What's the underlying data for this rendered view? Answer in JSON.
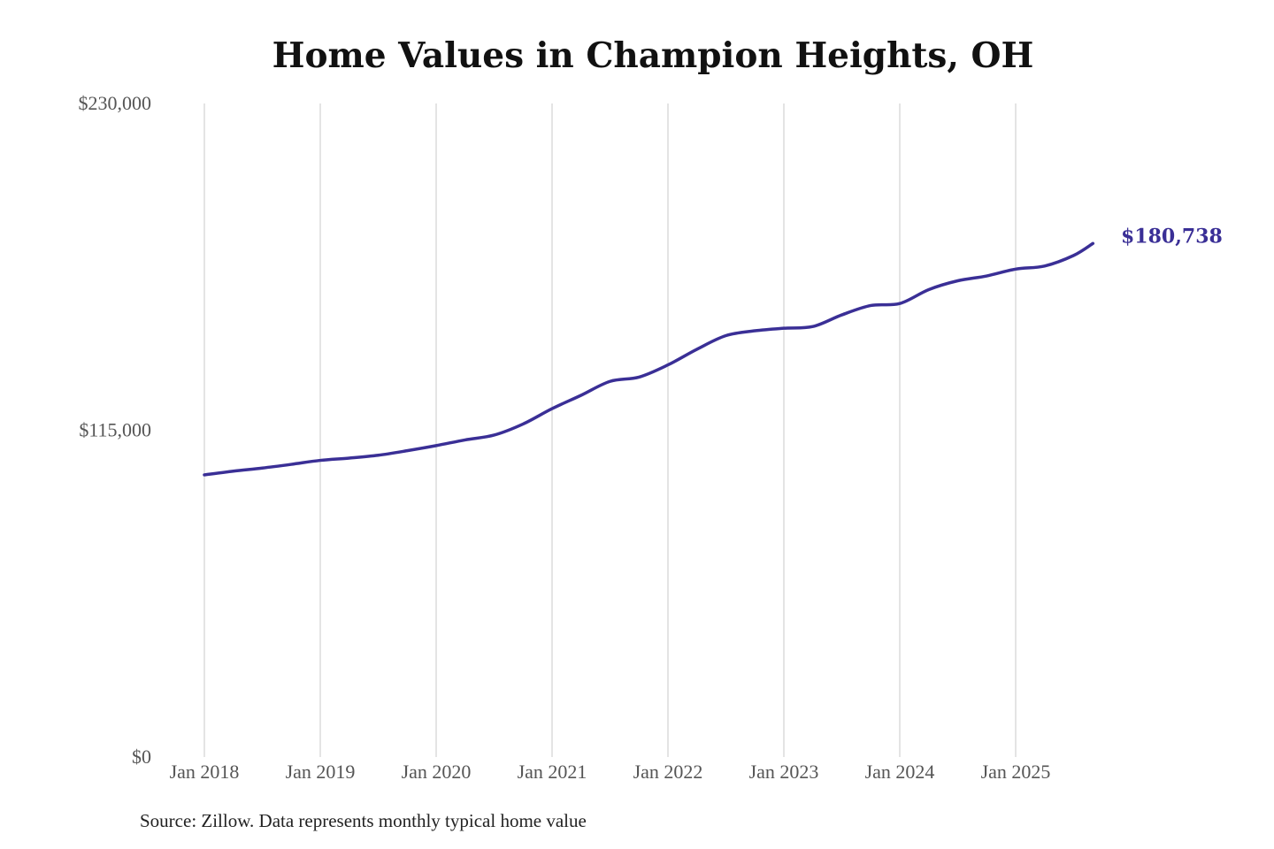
{
  "chart_data": {
    "type": "line",
    "title": "Home Values in Champion Heights, OH",
    "source": "Source: Zillow. Data represents monthly typical home value",
    "xlabel": "",
    "ylabel": "",
    "ylim": [
      0,
      230000
    ],
    "yticks": [
      0,
      115000,
      230000
    ],
    "ytick_labels": [
      "$0",
      "$115,000",
      "$230,000"
    ],
    "xticks": [
      "2018-01",
      "2019-01",
      "2020-01",
      "2021-01",
      "2022-01",
      "2023-01",
      "2024-01",
      "2025-01"
    ],
    "xtick_labels": [
      "Jan 2018",
      "Jan 2019",
      "Jan 2020",
      "Jan 2021",
      "Jan 2022",
      "Jan 2023",
      "Jan 2024",
      "Jan 2025"
    ],
    "grid": "vertical",
    "line_color": "#3a2f96",
    "end_label": "$180,738",
    "series": [
      {
        "x": [
          "2018-01",
          "2018-04",
          "2018-07",
          "2018-10",
          "2019-01",
          "2019-04",
          "2019-07",
          "2019-10",
          "2020-01",
          "2020-04",
          "2020-07",
          "2020-10",
          "2021-01",
          "2021-04",
          "2021-07",
          "2021-10",
          "2022-01",
          "2022-04",
          "2022-07",
          "2022-10",
          "2023-01",
          "2023-04",
          "2023-07",
          "2023-10",
          "2024-01",
          "2024-04",
          "2024-07",
          "2024-10",
          "2025-01",
          "2025-04",
          "2025-07",
          "2025-09"
        ],
        "values": [
          99300,
          100600,
          101700,
          103000,
          104400,
          105200,
          106200,
          107800,
          109600,
          111600,
          113300,
          117200,
          122600,
          127300,
          132200,
          133700,
          138000,
          143500,
          148300,
          150000,
          150900,
          151500,
          155600,
          158900,
          159600,
          164500,
          167600,
          169300,
          171700,
          172800,
          176500,
          180738
        ]
      }
    ]
  }
}
